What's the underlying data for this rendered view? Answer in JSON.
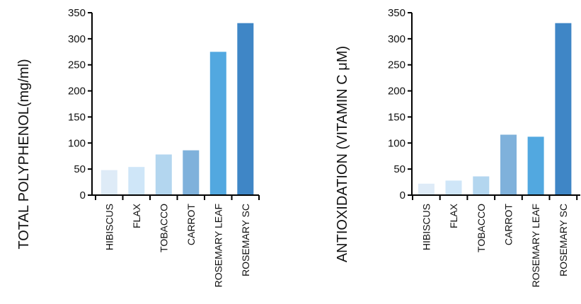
{
  "chart_data": [
    {
      "type": "bar",
      "ylabel": "TOTAL POLYPHENOL(mg/ml)",
      "xlabel": "",
      "categories": [
        "HIBISCUS",
        "FLAX",
        "TOBACCO",
        "CARROT",
        "ROSEMARY LEAF",
        "ROSEMARY SC"
      ],
      "values": [
        48,
        54,
        78,
        86,
        275,
        330
      ],
      "colors": [
        "#deebf7",
        "#cfe6f8",
        "#b3d6ef",
        "#7fb1db",
        "#52a8e0",
        "#3f86c6"
      ],
      "ylim": [
        0,
        350
      ],
      "yticks": [
        "0",
        "50",
        "100",
        "150",
        "200",
        "250",
        "300",
        "350"
      ],
      "grid": false,
      "legend": "none"
    },
    {
      "type": "bar",
      "ylabel": "ANTIOXIDATION (VITAMIN C μM)",
      "xlabel": "",
      "categories": [
        "HIBISCUS",
        "FLAX",
        "TOBACCO",
        "CARROT",
        "ROSEMARY LEAF",
        "ROSEMARY SC"
      ],
      "values": [
        22,
        28,
        36,
        116,
        112,
        330
      ],
      "colors": [
        "#deebf7",
        "#cfe6f8",
        "#b3d6ef",
        "#7fb1db",
        "#52a8e0",
        "#3f86c6"
      ],
      "ylim": [
        0,
        350
      ],
      "yticks": [
        "0",
        "50",
        "100",
        "150",
        "200",
        "250",
        "300",
        "350"
      ],
      "grid": false,
      "legend": "none"
    }
  ]
}
